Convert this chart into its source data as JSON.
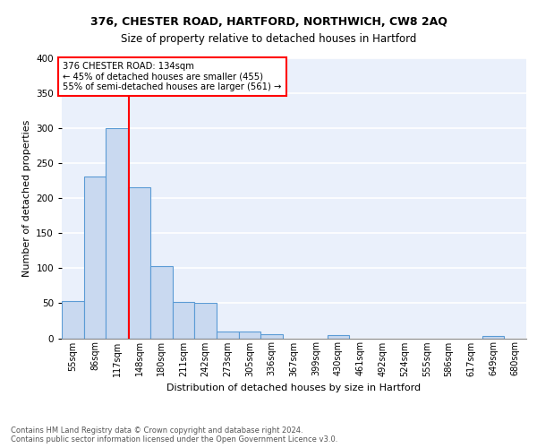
{
  "title1": "376, CHESTER ROAD, HARTFORD, NORTHWICH, CW8 2AQ",
  "title2": "Size of property relative to detached houses in Hartford",
  "xlabel": "Distribution of detached houses by size in Hartford",
  "ylabel": "Number of detached properties",
  "footnote": "Contains HM Land Registry data © Crown copyright and database right 2024.\nContains public sector information licensed under the Open Government Licence v3.0.",
  "bin_labels": [
    "55sqm",
    "86sqm",
    "117sqm",
    "148sqm",
    "180sqm",
    "211sqm",
    "242sqm",
    "273sqm",
    "305sqm",
    "336sqm",
    "367sqm",
    "399sqm",
    "430sqm",
    "461sqm",
    "492sqm",
    "524sqm",
    "555sqm",
    "586sqm",
    "617sqm",
    "649sqm",
    "680sqm"
  ],
  "bar_values": [
    53,
    231,
    300,
    216,
    103,
    52,
    50,
    10,
    10,
    6,
    0,
    0,
    4,
    0,
    0,
    0,
    0,
    0,
    0,
    3,
    0
  ],
  "bar_color": "#c9d9f0",
  "bar_edge_color": "#5b9bd5",
  "vline_color": "red",
  "annotation_text": "376 CHESTER ROAD: 134sqm\n← 45% of detached houses are smaller (455)\n55% of semi-detached houses are larger (561) →",
  "annotation_box_color": "white",
  "annotation_box_edge": "red",
  "ylim": [
    0,
    400
  ],
  "yticks": [
    0,
    50,
    100,
    150,
    200,
    250,
    300,
    350,
    400
  ],
  "background_color": "#eaf0fb",
  "grid_color": "white",
  "property_sqm": 134,
  "bin_edges": [
    55,
    86,
    117,
    148,
    180,
    211,
    242,
    273,
    305,
    336,
    367,
    399,
    430,
    461,
    492,
    524,
    555,
    586,
    617,
    649,
    680
  ]
}
